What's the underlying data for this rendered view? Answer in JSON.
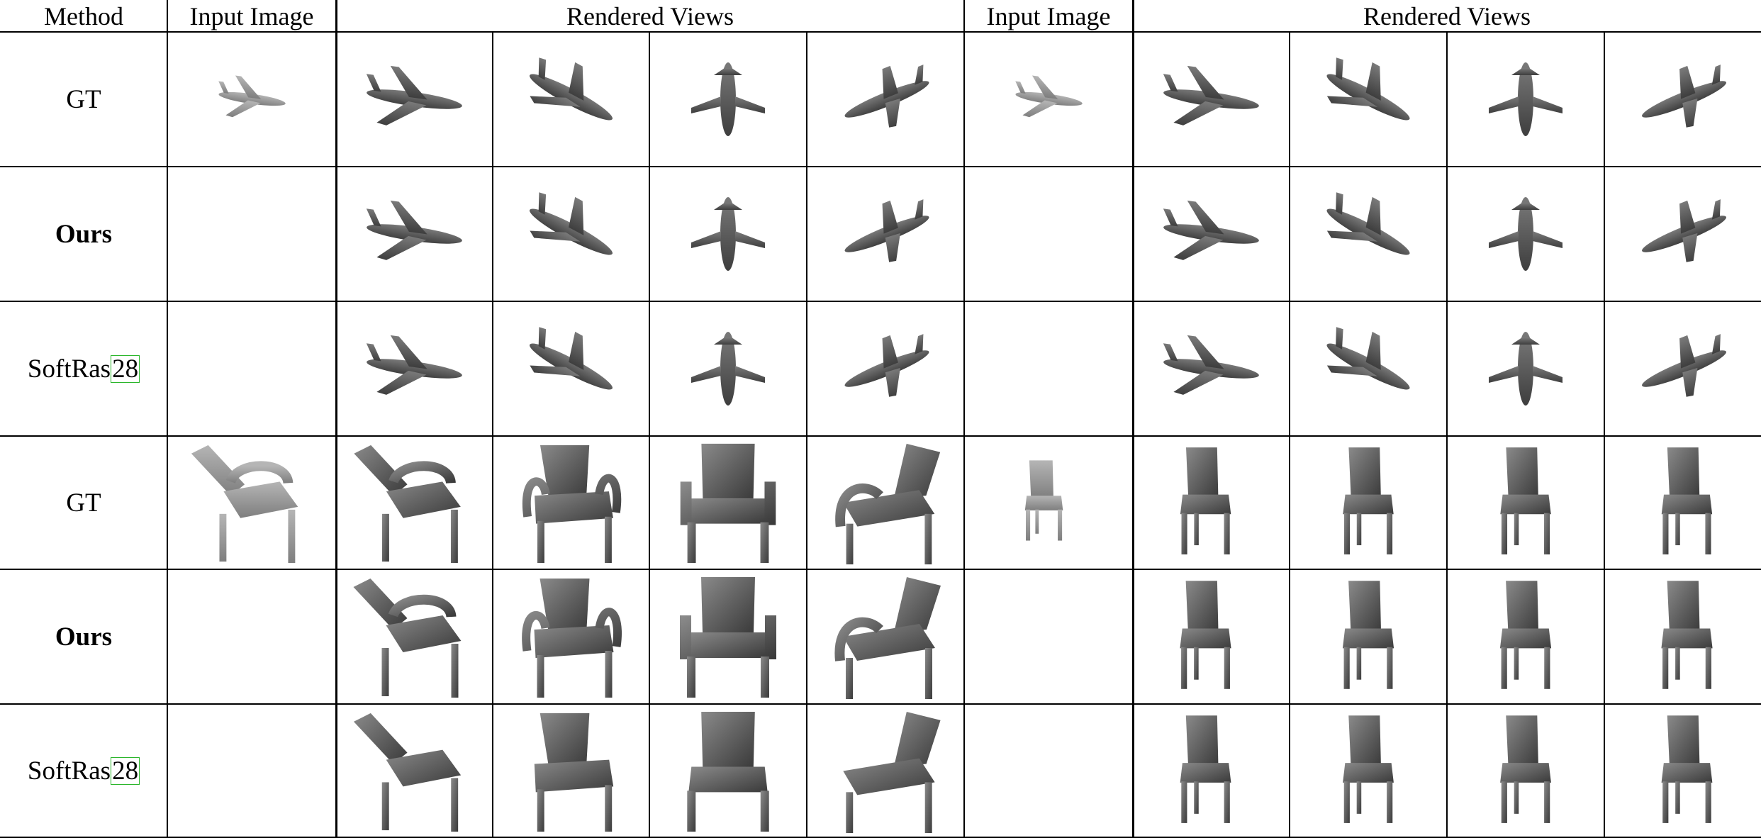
{
  "figure": {
    "headers": {
      "method": "Method",
      "input_image_1": "Input Image",
      "rendered_views_1": "Rendered Views",
      "input_image_2": "Input Image",
      "rendered_views_2": "Rendered Views"
    },
    "rows": [
      {
        "method": "GT",
        "bold": false,
        "object": "airplane",
        "input_shown": true
      },
      {
        "method": "Ours",
        "bold": true,
        "object": "airplane",
        "input_shown": false
      },
      {
        "method": "SoftRas",
        "citation": "28",
        "bold": false,
        "object": "airplane",
        "input_shown": false
      },
      {
        "method": "GT",
        "bold": false,
        "object": "chair",
        "input_shown": true
      },
      {
        "method": "Ours",
        "bold": true,
        "object": "chair",
        "input_shown": false
      },
      {
        "method": "SoftRas",
        "citation": "28",
        "bold": false,
        "object": "chair",
        "input_shown": false
      }
    ],
    "colors": {
      "rule": "#000000",
      "citation_box": "#2bb62b",
      "render_gray": "#555555",
      "input_gray": "#9a9a9a"
    }
  }
}
